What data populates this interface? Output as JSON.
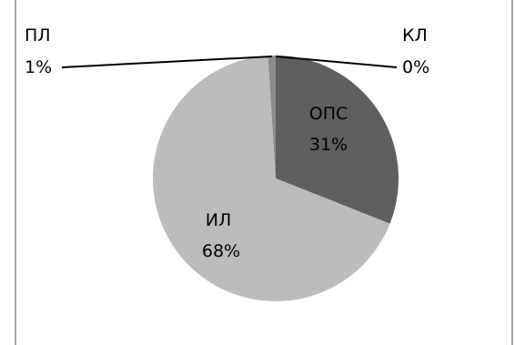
{
  "chart_data": {
    "type": "pie",
    "title": "",
    "legend": "none",
    "slices": [
      {
        "label": "КЛ",
        "value": 0,
        "percent_label": "0%",
        "color": "#5f5f5f"
      },
      {
        "label": "ОПС",
        "value": 31,
        "percent_label": "31%",
        "color": "#5f5f5f"
      },
      {
        "label": "ИЛ",
        "value": 68,
        "percent_label": "68%",
        "color": "#bcbcbc"
      },
      {
        "label": "ПЛ",
        "value": 1,
        "percent_label": "1%",
        "color": "#8c8c8c"
      }
    ]
  }
}
